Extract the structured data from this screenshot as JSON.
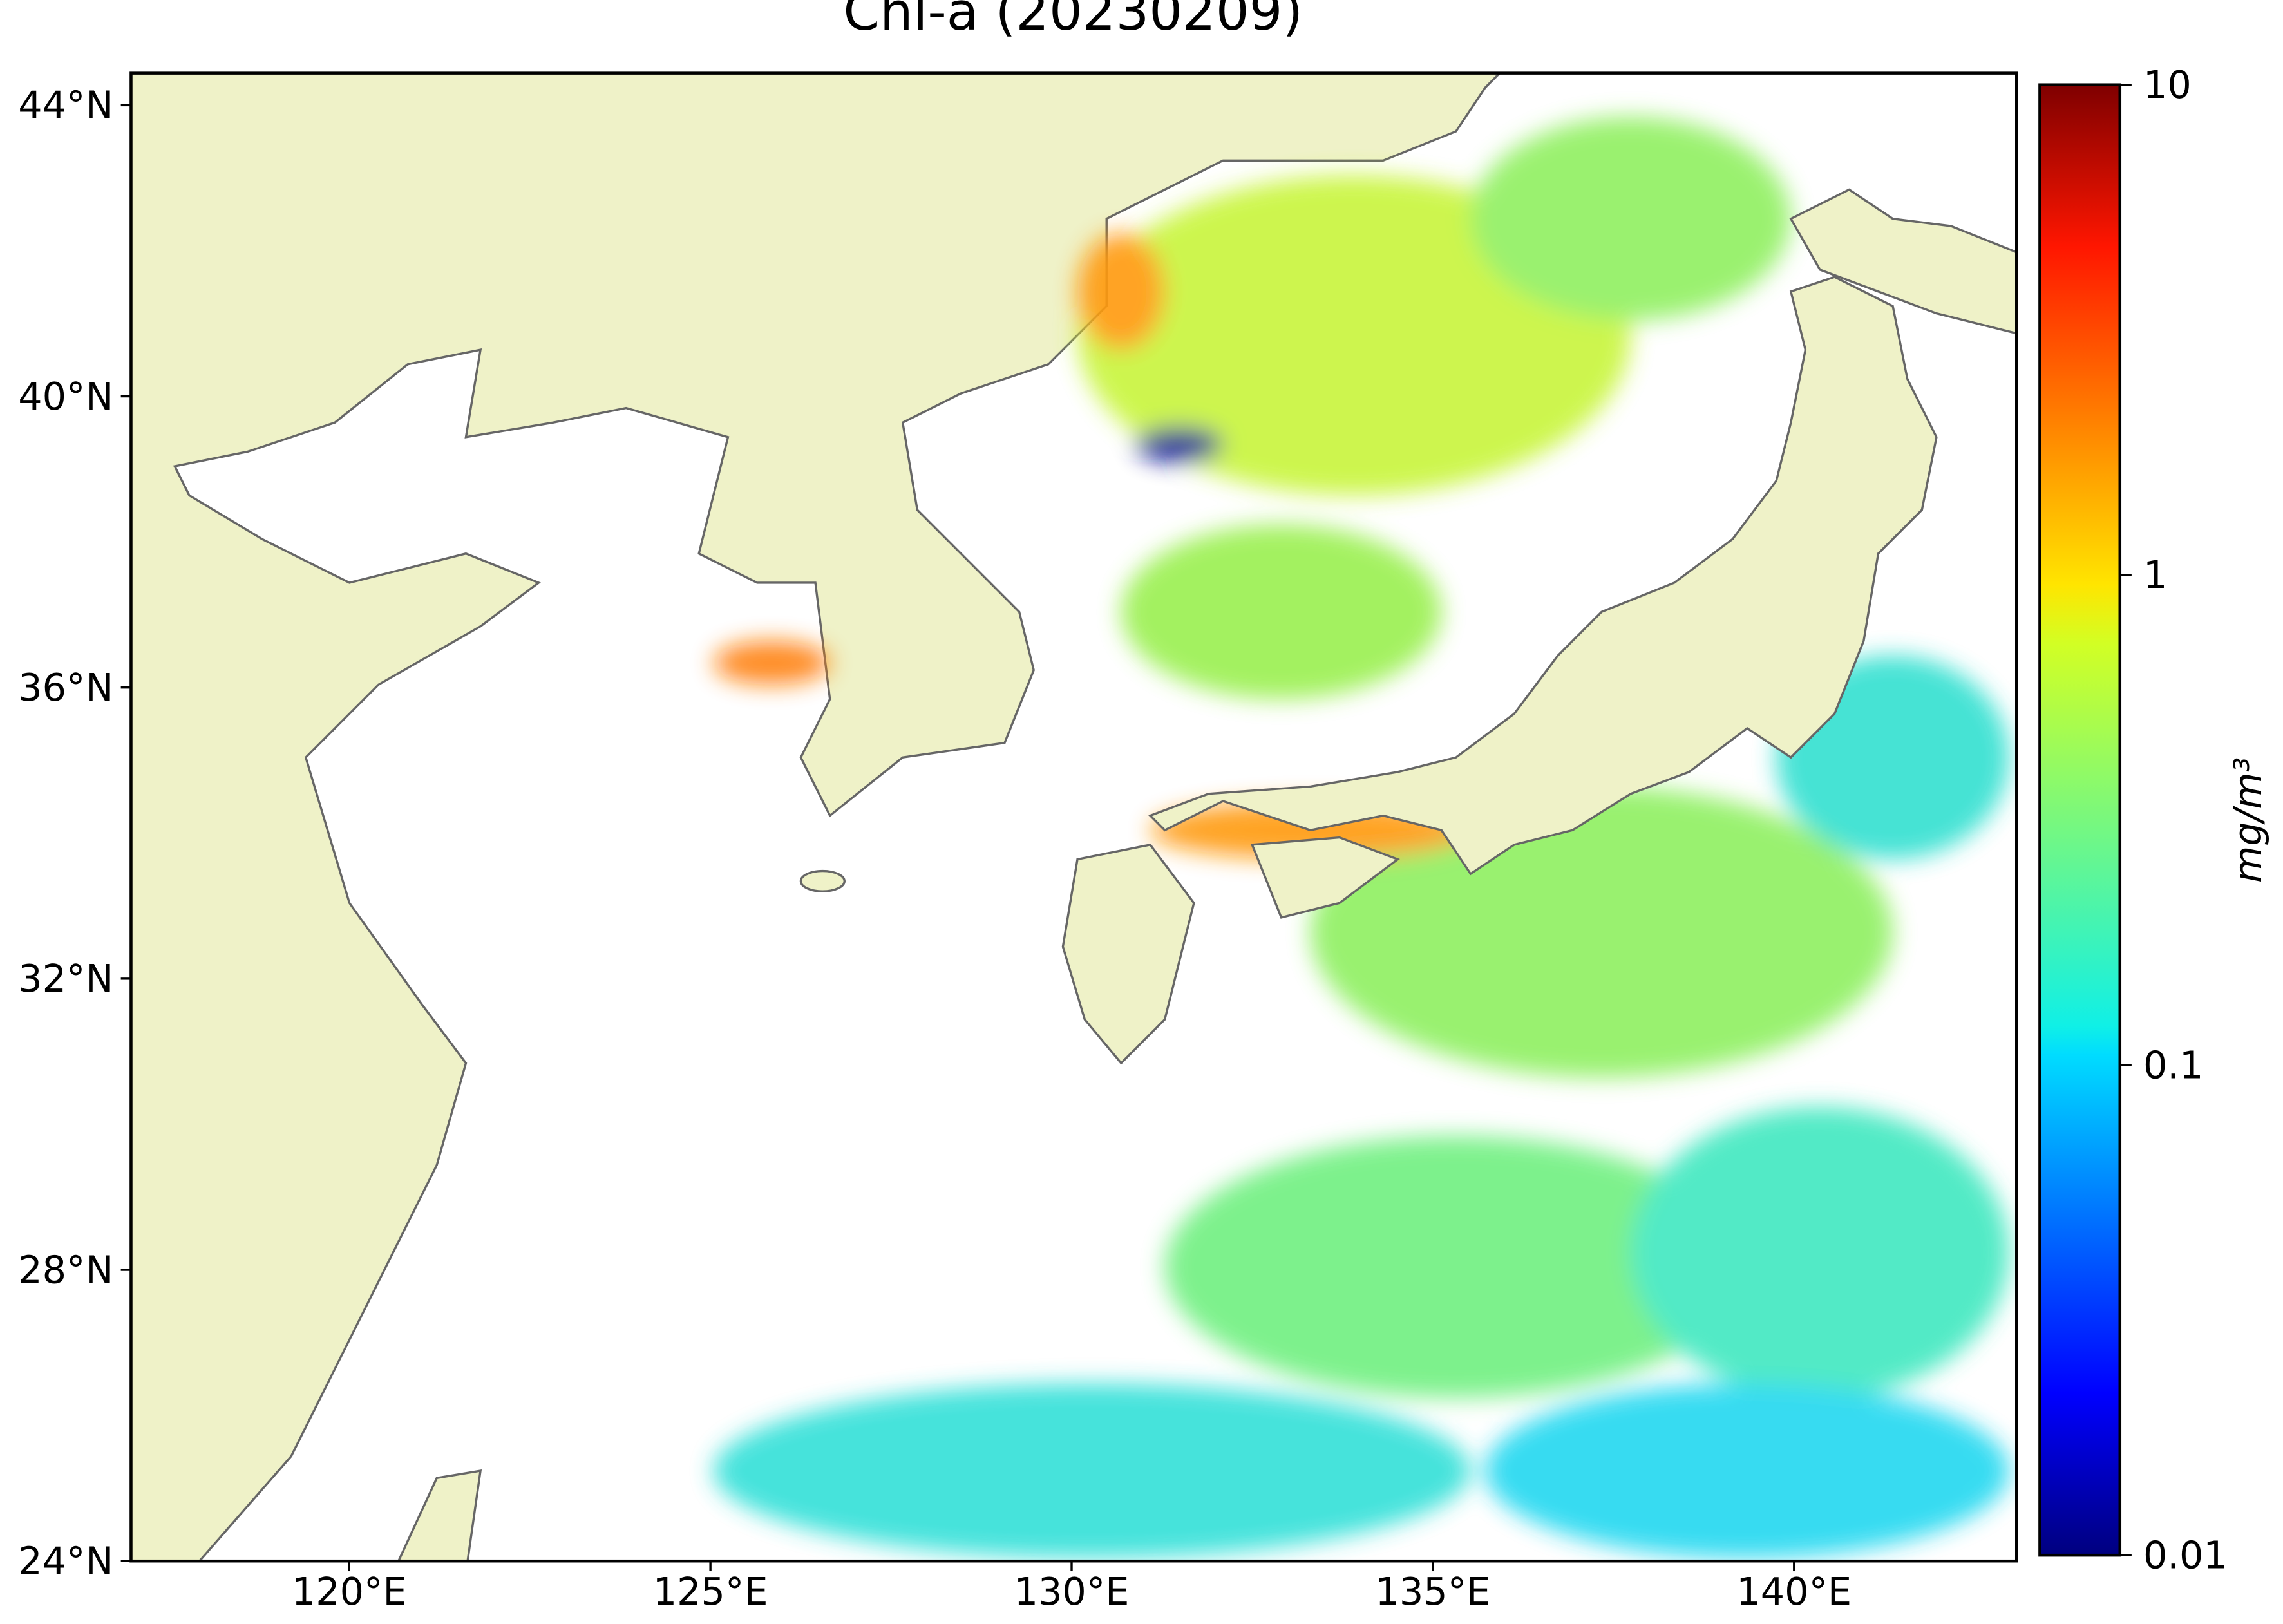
{
  "chart_data": {
    "type": "map",
    "title": "Chl-a (20230209)",
    "xlim": [
      116.98,
      143.08
    ],
    "xticks": [
      {
        "value": 120,
        "label": "120°E"
      },
      {
        "value": 125,
        "label": "125°E"
      },
      {
        "value": 130,
        "label": "130°E"
      },
      {
        "value": 135,
        "label": "135°E"
      },
      {
        "value": 140,
        "label": "140°E"
      }
    ],
    "ylim": [
      24,
      44.44
    ],
    "yticks": [
      {
        "value": 24,
        "label": "24°N"
      },
      {
        "value": 28,
        "label": "28°N"
      },
      {
        "value": 32,
        "label": "32°N"
      },
      {
        "value": 36,
        "label": "36°N"
      },
      {
        "value": 40,
        "label": "40°N"
      },
      {
        "value": 44,
        "label": "44°N"
      }
    ],
    "colorbar": {
      "label": "mg/m³",
      "scale": "log",
      "colormap": "jet",
      "lim": [
        0.01,
        10
      ],
      "ticks": [
        0.01,
        0.1,
        1,
        10
      ]
    }
  }
}
